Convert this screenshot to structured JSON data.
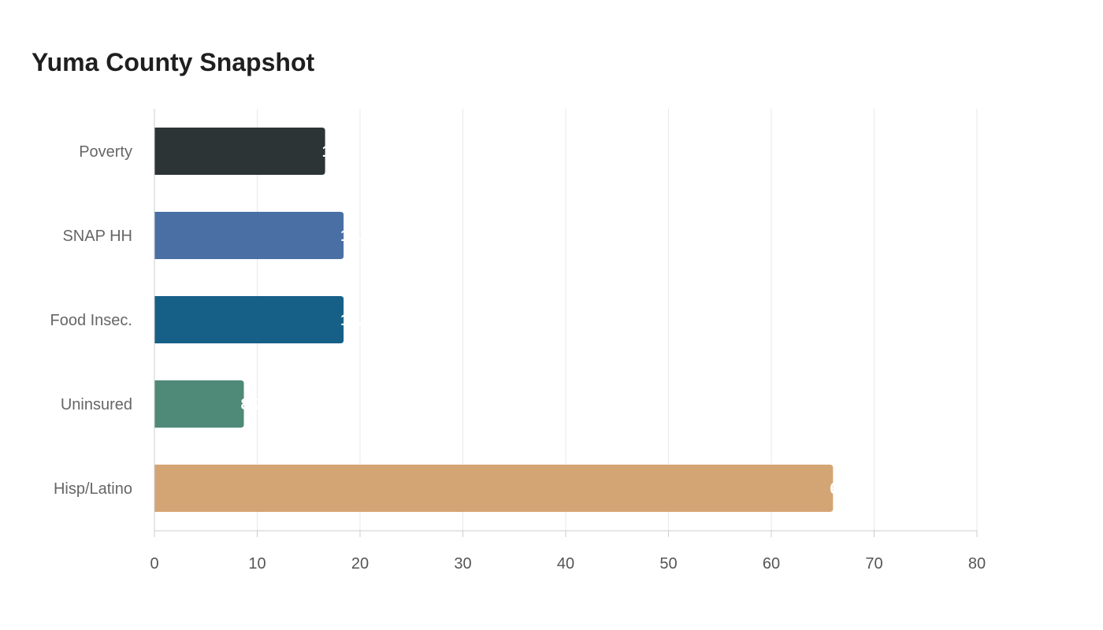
{
  "chart_data": {
    "type": "bar",
    "orientation": "horizontal",
    "title": "Yuma County Snapshot",
    "xlabel": "",
    "ylabel": "",
    "categories": [
      "Poverty",
      "SNAP HH",
      "Food Insec.",
      "Uninsured",
      "Hisp/Latino"
    ],
    "values": [
      16.6,
      18.4,
      18.4,
      8.7,
      66.0
    ],
    "colors": [
      "#2d3436",
      "#4a6fa5",
      "#166088",
      "#4f8a78",
      "#d4a574"
    ],
    "xlim": [
      0,
      80
    ],
    "xticks": [
      0,
      10,
      20,
      30,
      40,
      50,
      60,
      70,
      80
    ],
    "grid": "vertical",
    "legend": "none",
    "value_labels": [
      "16.6",
      "18.4",
      "18.4",
      "8.7",
      "66.0"
    ]
  }
}
